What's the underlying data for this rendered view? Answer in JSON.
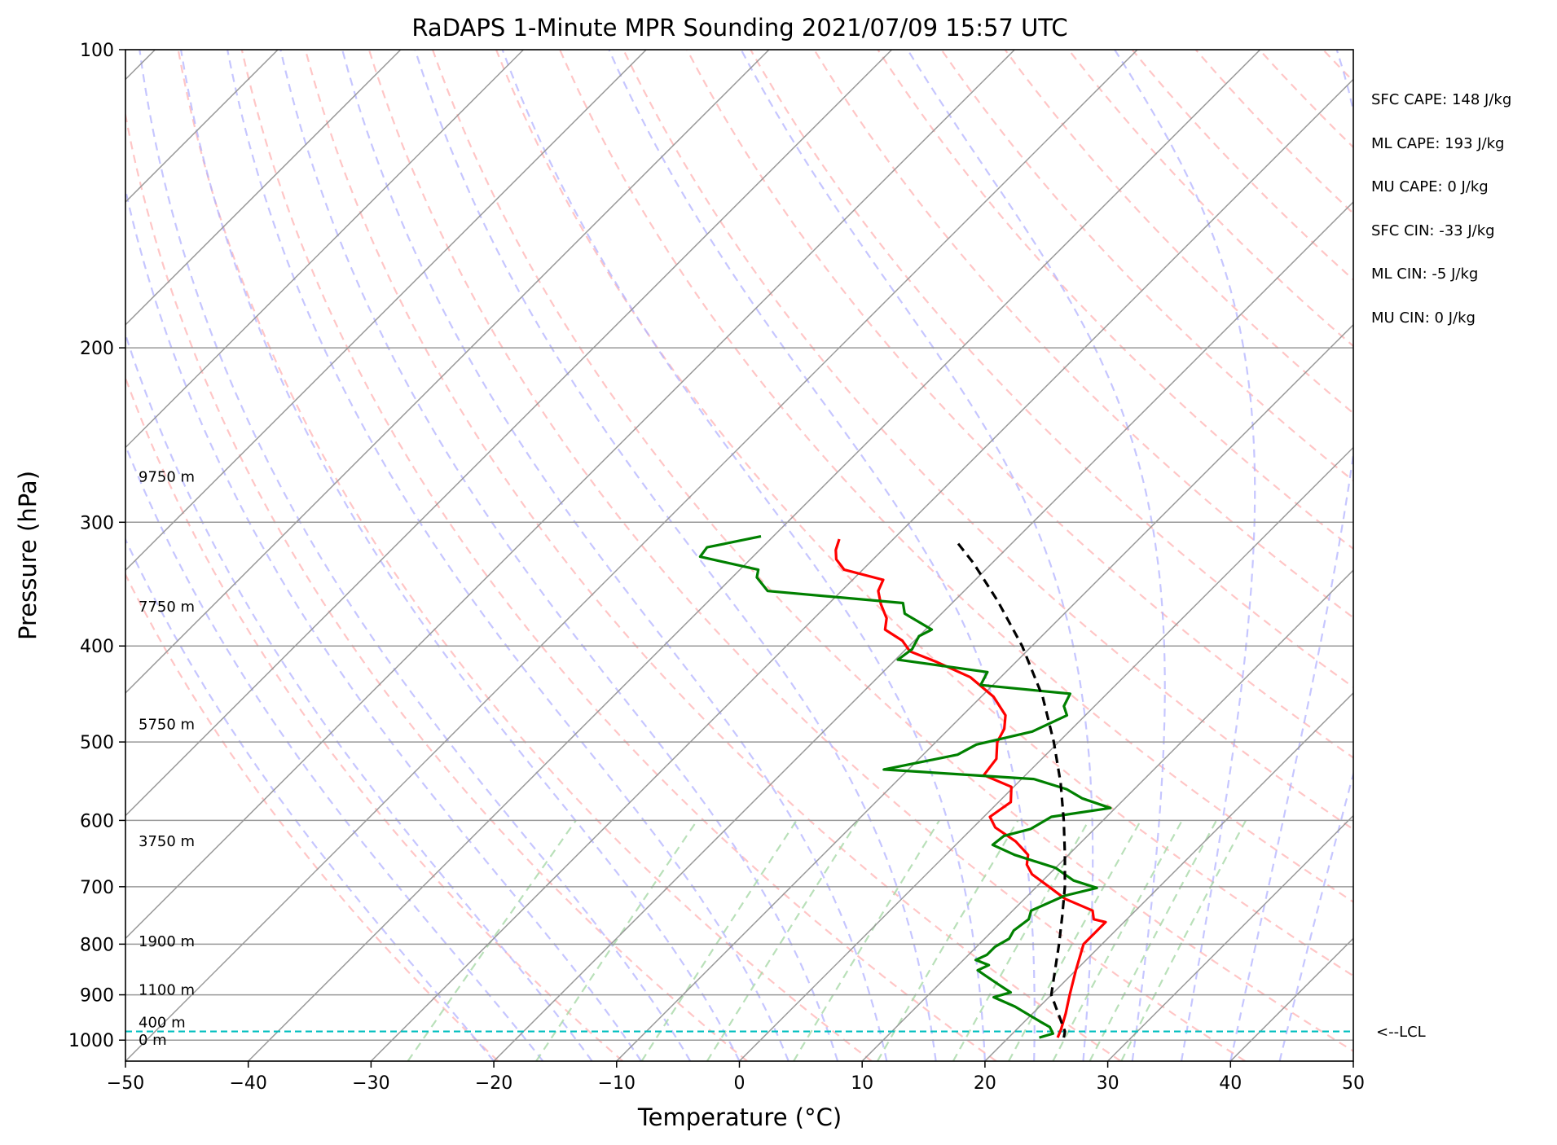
{
  "title": "RaDAPS 1-Minute MPR Sounding 2021/07/09 15:57 UTC",
  "colors": {
    "temperature": "#ff0000",
    "dewpoint": "#008000",
    "parcel": "#000000",
    "lcl": "#00bfbf",
    "isotherm": "#999999",
    "isobar": "#999999",
    "dry_adiabat": "#ffb3b3",
    "moist_adiabat": "#b3b3ff",
    "mixing_ratio": "#a8d8a8"
  },
  "chart_data": {
    "type": "line",
    "title": "RaDAPS 1-Minute MPR Sounding 2021/07/09 15:57 UTC",
    "xlabel": "Temperature (°C)",
    "ylabel": "Pressure (hPa)",
    "xlim": [
      -50,
      50
    ],
    "ylim": [
      1050,
      100
    ],
    "y_scale": "log",
    "skew_t": true,
    "grid": true,
    "x_ticks": [
      -50,
      -40,
      -30,
      -20,
      -10,
      0,
      10,
      20,
      30,
      40,
      50
    ],
    "x_tick_labels": [
      "−50",
      "−40",
      "−30",
      "−20",
      "−10",
      "0",
      "10",
      "20",
      "30",
      "40",
      "50"
    ],
    "y_ticks": [
      100,
      200,
      300,
      400,
      500,
      600,
      700,
      800,
      900,
      1000
    ],
    "y_tick_labels": [
      "100",
      "200",
      "300",
      "400",
      "500",
      "600",
      "700",
      "800",
      "900",
      "1000"
    ],
    "series": [
      {
        "key": "temperature",
        "points": [
          [
            994,
            24.0
          ],
          [
            975,
            23.6
          ],
          [
            940,
            22.7
          ],
          [
            900,
            21.5
          ],
          [
            850,
            20.0
          ],
          [
            800,
            18.5
          ],
          [
            760,
            18.5
          ],
          [
            755,
            17.3
          ],
          [
            740,
            16.5
          ],
          [
            720,
            13.3
          ],
          [
            700,
            11.0
          ],
          [
            680,
            8.6
          ],
          [
            665,
            7.4
          ],
          [
            650,
            6.7
          ],
          [
            630,
            4.6
          ],
          [
            610,
            1.8
          ],
          [
            595,
            0.5
          ],
          [
            575,
            1.0
          ],
          [
            555,
            -0.2
          ],
          [
            540,
            -3.4
          ],
          [
            520,
            -3.7
          ],
          [
            500,
            -5.0
          ],
          [
            485,
            -5.5
          ],
          [
            470,
            -6.5
          ],
          [
            450,
            -9.0
          ],
          [
            430,
            -12.5
          ],
          [
            415,
            -16.5
          ],
          [
            405,
            -19.5
          ],
          [
            395,
            -21.0
          ],
          [
            385,
            -23.3
          ],
          [
            375,
            -24.1
          ],
          [
            363,
            -25.7
          ],
          [
            352,
            -27.0
          ],
          [
            343,
            -27.5
          ],
          [
            335,
            -31.5
          ],
          [
            327,
            -33.0
          ],
          [
            320,
            -33.8
          ],
          [
            312,
            -34.4
          ]
        ]
      },
      {
        "key": "dewpoint",
        "points": [
          [
            994,
            22.5
          ],
          [
            985,
            23.3
          ],
          [
            970,
            22.5
          ],
          [
            960,
            21.5
          ],
          [
            955,
            21.0
          ],
          [
            945,
            20.0
          ],
          [
            925,
            18.0
          ],
          [
            905,
            15.5
          ],
          [
            895,
            16.5
          ],
          [
            880,
            15.0
          ],
          [
            860,
            13.0
          ],
          [
            850,
            12.0
          ],
          [
            840,
            12.5
          ],
          [
            830,
            11.0
          ],
          [
            820,
            11.5
          ],
          [
            805,
            11.5
          ],
          [
            790,
            12.0
          ],
          [
            775,
            11.7
          ],
          [
            755,
            12.0
          ],
          [
            740,
            11.5
          ],
          [
            715,
            13.0
          ],
          [
            702,
            15.0
          ],
          [
            690,
            12.5
          ],
          [
            670,
            10.0
          ],
          [
            650,
            5.6
          ],
          [
            635,
            3.0
          ],
          [
            622,
            3.2
          ],
          [
            612,
            4.8
          ],
          [
            595,
            5.5
          ],
          [
            583,
            9.6
          ],
          [
            570,
            6.5
          ],
          [
            558,
            4.5
          ],
          [
            545,
            1.0
          ],
          [
            533,
            -12.0
          ],
          [
            515,
            -7.2
          ],
          [
            503,
            -6.5
          ],
          [
            488,
            -3.0
          ],
          [
            470,
            -1.5
          ],
          [
            460,
            -2.5
          ],
          [
            447,
            -3.0
          ],
          [
            438,
            -11.0
          ],
          [
            425,
            -11.5
          ],
          [
            413,
            -19.8
          ],
          [
            403,
            -19.5
          ],
          [
            391,
            -20.0
          ],
          [
            385,
            -19.5
          ],
          [
            371,
            -23.0
          ],
          [
            362,
            -24.0
          ],
          [
            352,
            -36.0
          ],
          [
            341,
            -38.0
          ],
          [
            335,
            -38.5
          ],
          [
            325,
            -44.3
          ],
          [
            318,
            -44.5
          ],
          [
            310,
            -41.0
          ]
        ]
      },
      {
        "key": "parcel",
        "points": [
          [
            994,
            24.5
          ],
          [
            980,
            24.1
          ],
          [
            950,
            22.6
          ],
          [
            900,
            20.0
          ],
          [
            850,
            18.3
          ],
          [
            800,
            16.5
          ],
          [
            750,
            14.5
          ],
          [
            700,
            12.3
          ],
          [
            650,
            9.7
          ],
          [
            600,
            6.8
          ],
          [
            550,
            3.5
          ],
          [
            500,
            -0.4
          ],
          [
            450,
            -5.0
          ],
          [
            400,
            -10.8
          ],
          [
            360,
            -16.5
          ],
          [
            330,
            -21.5
          ],
          [
            315,
            -24.4
          ]
        ]
      }
    ],
    "lcl_pressure": 980,
    "lcl_label": "<--LCL",
    "height_labels": [
      {
        "pressure": 1000,
        "text": "0 m"
      },
      {
        "pressure": 960,
        "text": "400 m"
      },
      {
        "pressure": 890,
        "text": "1100 m"
      },
      {
        "pressure": 795,
        "text": "1900 m"
      },
      {
        "pressure": 630,
        "text": "3750 m"
      },
      {
        "pressure": 480,
        "text": "5750 m"
      },
      {
        "pressure": 365,
        "text": "7750 m"
      },
      {
        "pressure": 270,
        "text": "9750 m"
      }
    ],
    "parameters": [
      "SFC CAPE: 148 J/kg",
      "ML CAPE: 193 J/kg",
      "MU CAPE: 0 J/kg",
      "SFC CIN: -33 J/kg",
      "ML CIN: -5 J/kg",
      "MU CIN: 0 J/kg"
    ]
  }
}
